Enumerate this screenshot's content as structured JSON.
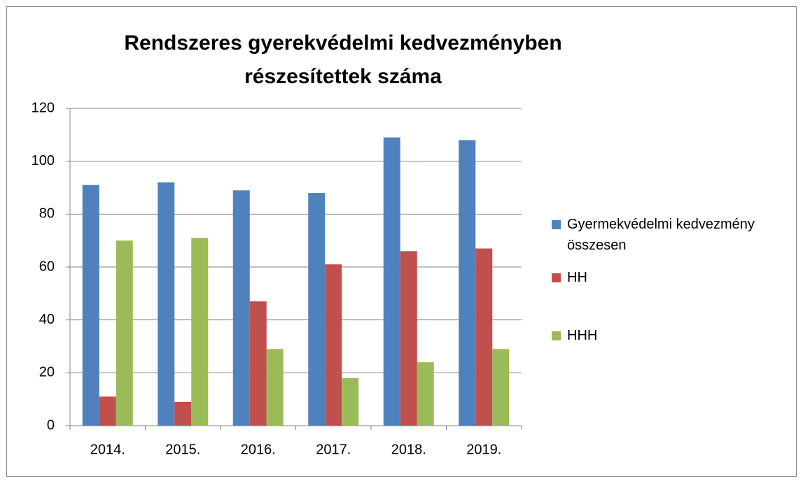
{
  "chart_data": {
    "type": "bar",
    "title": "Rendszeres gyerekvédelmi kedvezményben részesítettek száma",
    "categories": [
      "2014.",
      "2015.",
      "2016.",
      "2017.",
      "2018.",
      "2019."
    ],
    "series": [
      {
        "name": "Gyermekvédelmi kedvezmény összesen",
        "color": "#4f81bd",
        "values": [
          91,
          92,
          89,
          88,
          109,
          108
        ]
      },
      {
        "name": "HH",
        "color": "#c0504d",
        "values": [
          11,
          9,
          47,
          61,
          66,
          67
        ]
      },
      {
        "name": "HHH",
        "color": "#9bbb59",
        "values": [
          70,
          71,
          29,
          18,
          24,
          29
        ]
      }
    ],
    "ylim": [
      0,
      120
    ],
    "yticks": [
      0,
      20,
      40,
      60,
      80,
      100,
      120
    ],
    "grid": true,
    "legend": "right"
  }
}
